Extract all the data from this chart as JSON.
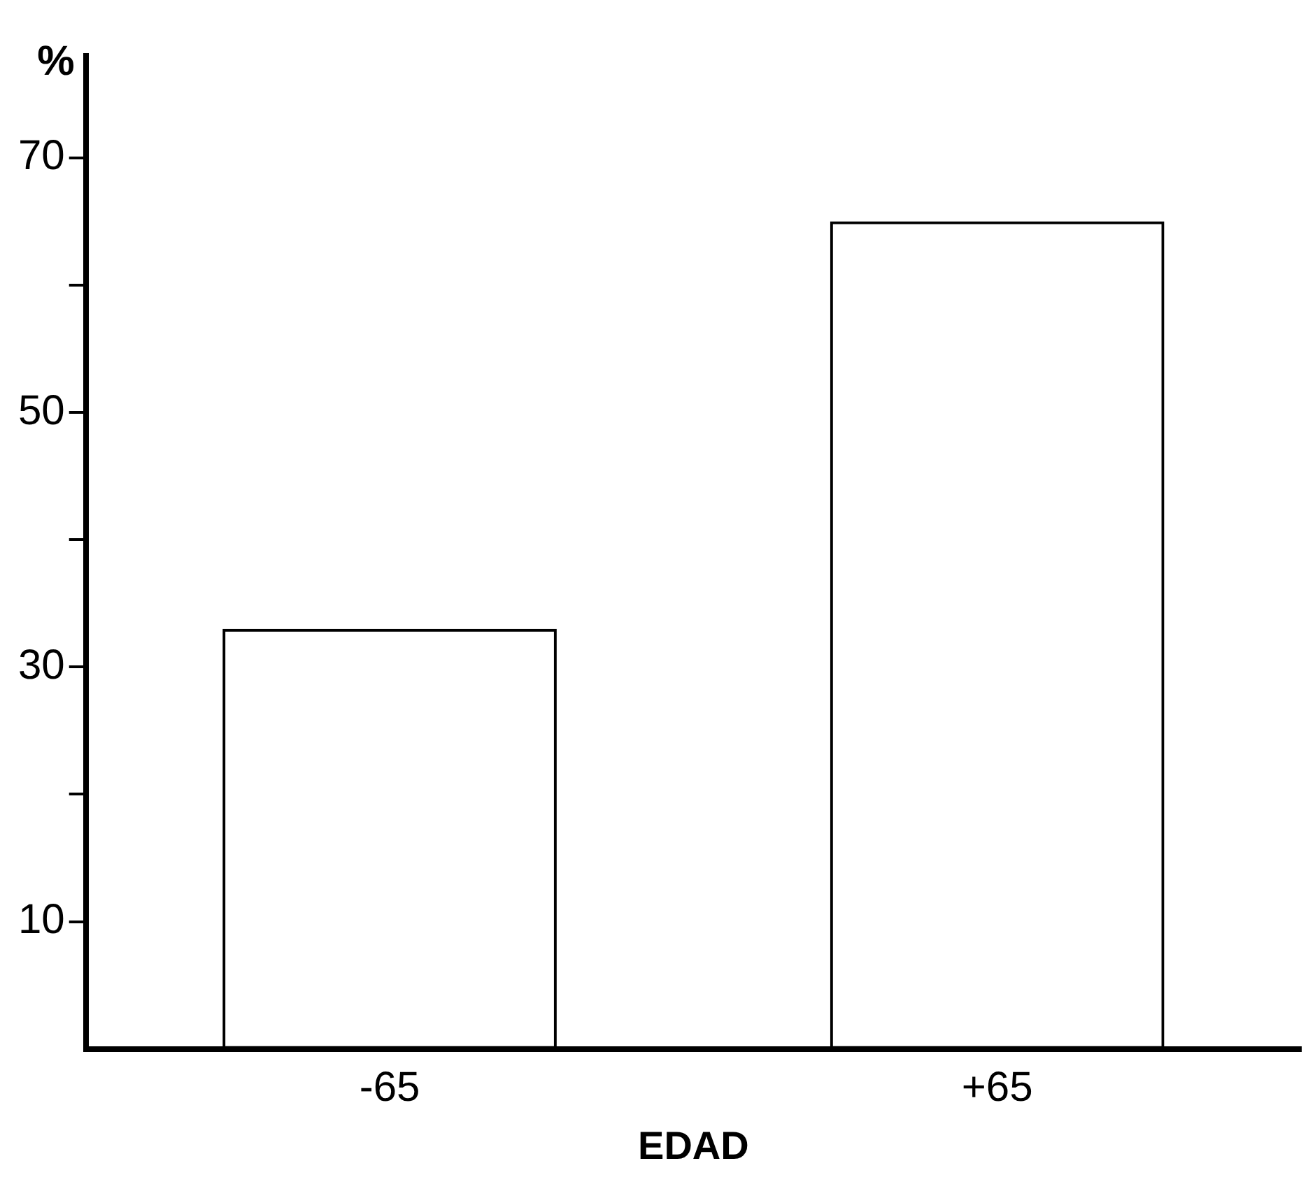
{
  "chart_data": {
    "type": "bar",
    "categories": [
      "-65",
      "+65"
    ],
    "values": [
      33,
      65
    ],
    "color": "#000000",
    "xlabel": "EDAD",
    "ylabel": "%",
    "ylim": [
      0,
      78
    ],
    "yticks": [
      {
        "value": 10,
        "label": "10"
      },
      {
        "value": 20,
        "label": null
      },
      {
        "value": 30,
        "label": "30"
      },
      {
        "value": 40,
        "label": null
      },
      {
        "value": 50,
        "label": "50"
      },
      {
        "value": 60,
        "label": null
      },
      {
        "value": 70,
        "label": "70"
      }
    ],
    "grid": false,
    "legend": false
  }
}
